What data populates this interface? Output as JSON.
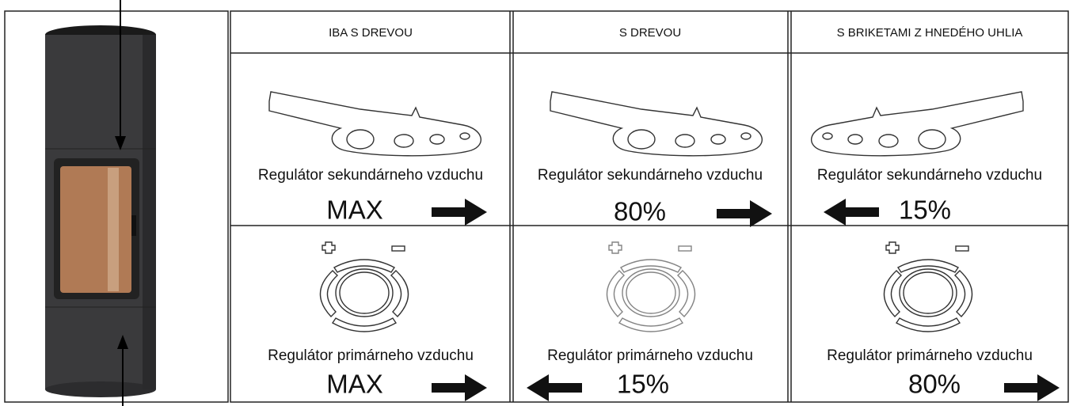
{
  "columns": [
    {
      "header": "IBA S DREVOU",
      "secondary": {
        "label": "Regulátor sekundárneho vzduchu",
        "setting": "MAX"
      },
      "primary": {
        "label": "Regulátor primárneho vzduchu",
        "setting": "MAX"
      }
    },
    {
      "header": "S DREVOU",
      "secondary": {
        "label": "Regulátor sekundárneho vzduchu",
        "setting": "80%"
      },
      "primary": {
        "label": "Regulátor primárneho vzduchu",
        "setting": "15%"
      }
    },
    {
      "header": "S BRIKETAMI Z HNEDÉHO UHLIA",
      "secondary": {
        "label": "Regulátor sekundárneho vzduchu",
        "setting": "15%"
      },
      "primary": {
        "label": "Regulátor primárneho vzduchu",
        "setting": "80%"
      }
    }
  ]
}
